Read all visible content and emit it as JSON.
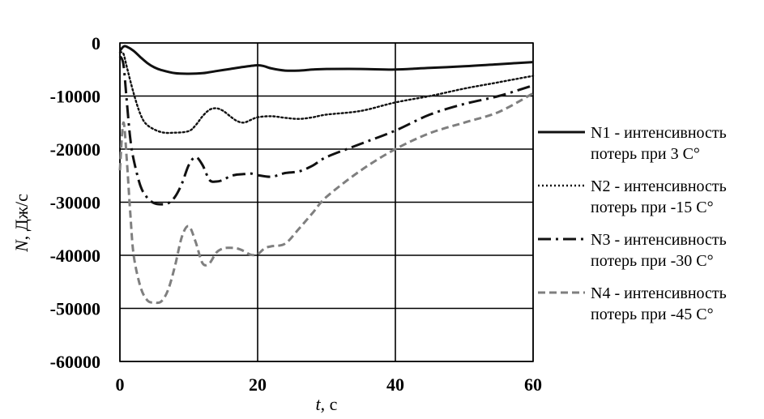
{
  "chart_data": {
    "type": "line",
    "title": "",
    "xlabel_italic": "t",
    "xlabel_rest": ", с",
    "ylabel_italic": "N",
    "ylabel_rest": ", Дж/с",
    "xlim": [
      0,
      60
    ],
    "ylim": [
      -60000,
      0
    ],
    "xticks": [
      0,
      20,
      40,
      60
    ],
    "yticks": [
      0,
      -10000,
      -20000,
      -30000,
      -40000,
      -50000,
      -60000
    ],
    "xtick_labels": [
      "0",
      "20",
      "40",
      "60"
    ],
    "ytick_labels": [
      "0",
      "-10000",
      "-20000",
      "-30000",
      "-40000",
      "-50000",
      "-60000"
    ],
    "grid": true,
    "legend_position": "right",
    "series": [
      {
        "name_line1": "N1 - интенсивность",
        "name_line2": "потерь при 3 С°",
        "color": "#111111",
        "style": "solid",
        "x": [
          0,
          0.5,
          1,
          2,
          3,
          4,
          5,
          6,
          8,
          10,
          12,
          14,
          16,
          18,
          20,
          21,
          22,
          24,
          26,
          28,
          30,
          35,
          40,
          45,
          50,
          55,
          60
        ],
        "y": [
          -1500,
          -700,
          -700,
          -1500,
          -2700,
          -3800,
          -4600,
          -5100,
          -5700,
          -5800,
          -5700,
          -5300,
          -4900,
          -4500,
          -4200,
          -4400,
          -4800,
          -5200,
          -5200,
          -5000,
          -4900,
          -4900,
          -5000,
          -4700,
          -4400,
          -4000,
          -3600
        ]
      },
      {
        "name_line1": "N2 - интенсивность",
        "name_line2": "потерь при -15 С°",
        "color": "#111111",
        "style": "dotted",
        "x": [
          0,
          0.5,
          1,
          2,
          3,
          4,
          6,
          8,
          10,
          11,
          12,
          13,
          14,
          15,
          16,
          17,
          18,
          19,
          20,
          22,
          24,
          26,
          28,
          30,
          35,
          40,
          45,
          50,
          55,
          60
        ],
        "y": [
          -1800,
          -2000,
          -4500,
          -9500,
          -13500,
          -15500,
          -16800,
          -16900,
          -16600,
          -15500,
          -13800,
          -12600,
          -12300,
          -12800,
          -13800,
          -14700,
          -15000,
          -14500,
          -14000,
          -13800,
          -14100,
          -14300,
          -14000,
          -13500,
          -12800,
          -11200,
          -10000,
          -8600,
          -7400,
          -6200
        ]
      },
      {
        "name_line1": "N3 - интенсивность",
        "name_line2": "потерь при -30 С°",
        "color": "#111111",
        "style": "dashdot",
        "x": [
          0,
          0.5,
          1,
          1.5,
          2,
          3,
          4,
          5,
          6,
          7,
          8,
          9,
          10,
          11,
          12,
          13,
          14,
          15,
          16,
          17,
          18,
          19,
          20,
          22,
          24,
          26,
          28,
          30,
          35,
          40,
          45,
          50,
          55,
          60
        ],
        "y": [
          -2500,
          -4000,
          -11000,
          -18000,
          -22000,
          -27000,
          -29200,
          -30200,
          -30400,
          -30200,
          -29000,
          -26500,
          -23000,
          -21500,
          -23000,
          -25800,
          -26100,
          -25800,
          -25100,
          -24800,
          -24700,
          -24600,
          -24900,
          -25200,
          -24500,
          -24200,
          -23100,
          -21500,
          -19000,
          -16500,
          -13500,
          -11500,
          -10000,
          -8000
        ]
      },
      {
        "name_line1": "N4 - интенсивность",
        "name_line2": "потерь при -45 С°",
        "color": "#7f7f7f",
        "style": "dashed",
        "x": [
          0,
          0.5,
          1,
          1.5,
          2,
          3,
          4,
          5,
          6,
          7,
          8,
          9,
          10,
          11,
          12,
          13,
          14,
          15,
          16,
          17,
          18,
          19,
          20,
          21,
          22,
          24,
          26,
          28,
          30,
          35,
          40,
          45,
          50,
          55,
          60
        ],
        "y": [
          -24000,
          -15000,
          -22000,
          -32000,
          -40000,
          -46000,
          -48500,
          -48900,
          -48700,
          -46500,
          -42000,
          -36500,
          -34500,
          -37500,
          -41500,
          -41500,
          -39500,
          -38700,
          -38600,
          -38700,
          -39200,
          -39900,
          -39800,
          -38700,
          -38300,
          -37800,
          -35000,
          -32000,
          -29000,
          -24000,
          -20000,
          -17000,
          -15000,
          -13000,
          -9500
        ]
      }
    ]
  }
}
